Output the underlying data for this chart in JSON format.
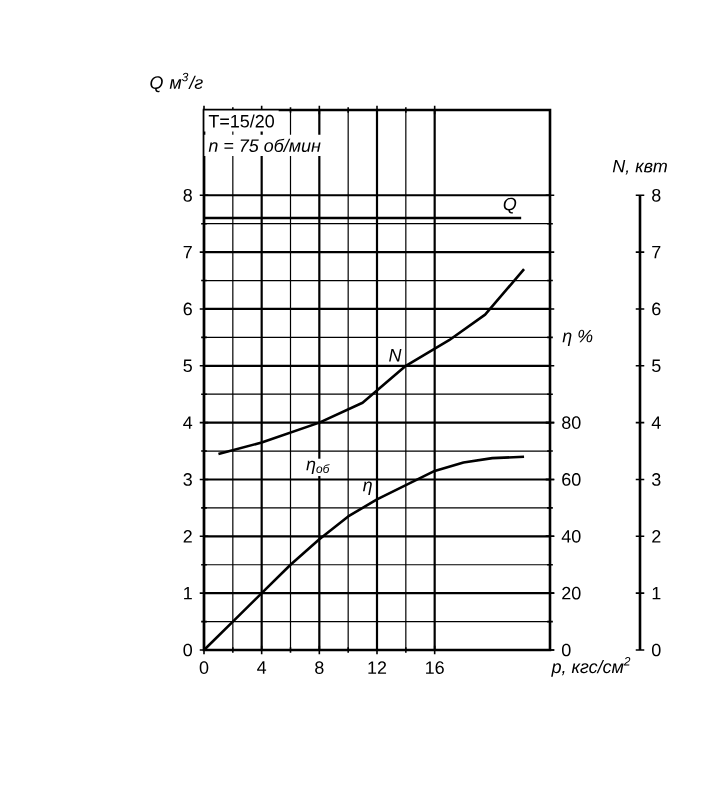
{
  "chart_data": {
    "type": "line",
    "title": "T=15/20",
    "subtitle": "n = 75 об/мин",
    "xlabel": "p, кгс/см$^{2}$",
    "ylabel": "Q м$^{3}$/г",
    "y2label": "N, квт",
    "y3label": "η %",
    "annotations": [
      "η$_{об}$"
    ],
    "xlim": [
      0,
      24
    ],
    "xticks": [
      0,
      4,
      8,
      12,
      16
    ],
    "ylim": [
      0,
      9.5
    ],
    "yticks": [
      0,
      1,
      2,
      3,
      4,
      5,
      6,
      7,
      8
    ],
    "y2lim": [
      0,
      9.5
    ],
    "y2ticks": [
      0,
      1,
      2,
      3,
      4,
      5,
      6,
      7,
      8
    ],
    "y3lim": [
      0,
      190
    ],
    "y3ticks": [
      0,
      20,
      40,
      60,
      80
    ],
    "grid": true,
    "series": [
      {
        "name": "Q",
        "color": "#000000",
        "axis": "y",
        "x": [
          0,
          22
        ],
        "values": [
          7.6,
          7.6
        ]
      },
      {
        "name": "N",
        "color": "#000000",
        "axis": "y2",
        "x": [
          1,
          4,
          8,
          11,
          14,
          17,
          19.5,
          22.2
        ],
        "values": [
          3.45,
          3.65,
          4.0,
          4.35,
          5.0,
          5.45,
          5.9,
          6.7
        ]
      },
      {
        "name": "η",
        "color": "#000000",
        "axis": "y3",
        "x": [
          0,
          2,
          4,
          6,
          8,
          10,
          12,
          14,
          16,
          18,
          20,
          22.2
        ],
        "values": [
          0,
          10,
          20,
          30,
          39,
          47,
          53,
          58,
          63,
          66,
          67.5,
          68
        ]
      }
    ]
  }
}
